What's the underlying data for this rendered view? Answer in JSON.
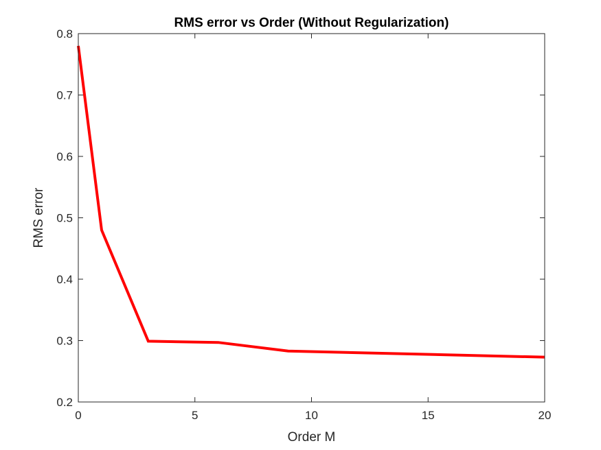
{
  "chart_data": {
    "type": "line",
    "title": "RMS error vs Order (Without Regularization)",
    "xlabel": "Order M",
    "ylabel": "RMS error",
    "xlim": [
      0,
      20
    ],
    "ylim": [
      0.2,
      0.8
    ],
    "xticks": [
      0,
      5,
      10,
      15,
      20
    ],
    "xtick_labels": [
      "0",
      "5",
      "10",
      "15",
      "20"
    ],
    "yticks": [
      0.2,
      0.3,
      0.4,
      0.5,
      0.6,
      0.7,
      0.8
    ],
    "ytick_labels": [
      "0.2",
      "0.3",
      "0.4",
      "0.5",
      "0.6",
      "0.7",
      "0.8"
    ],
    "grid": false,
    "series": [
      {
        "x": [
          0,
          1,
          3,
          6,
          9,
          20
        ],
        "y": [
          0.78,
          0.48,
          0.299,
          0.297,
          0.283,
          0.273
        ],
        "color": "#ff0000"
      }
    ],
    "axes_color": "#262626"
  }
}
